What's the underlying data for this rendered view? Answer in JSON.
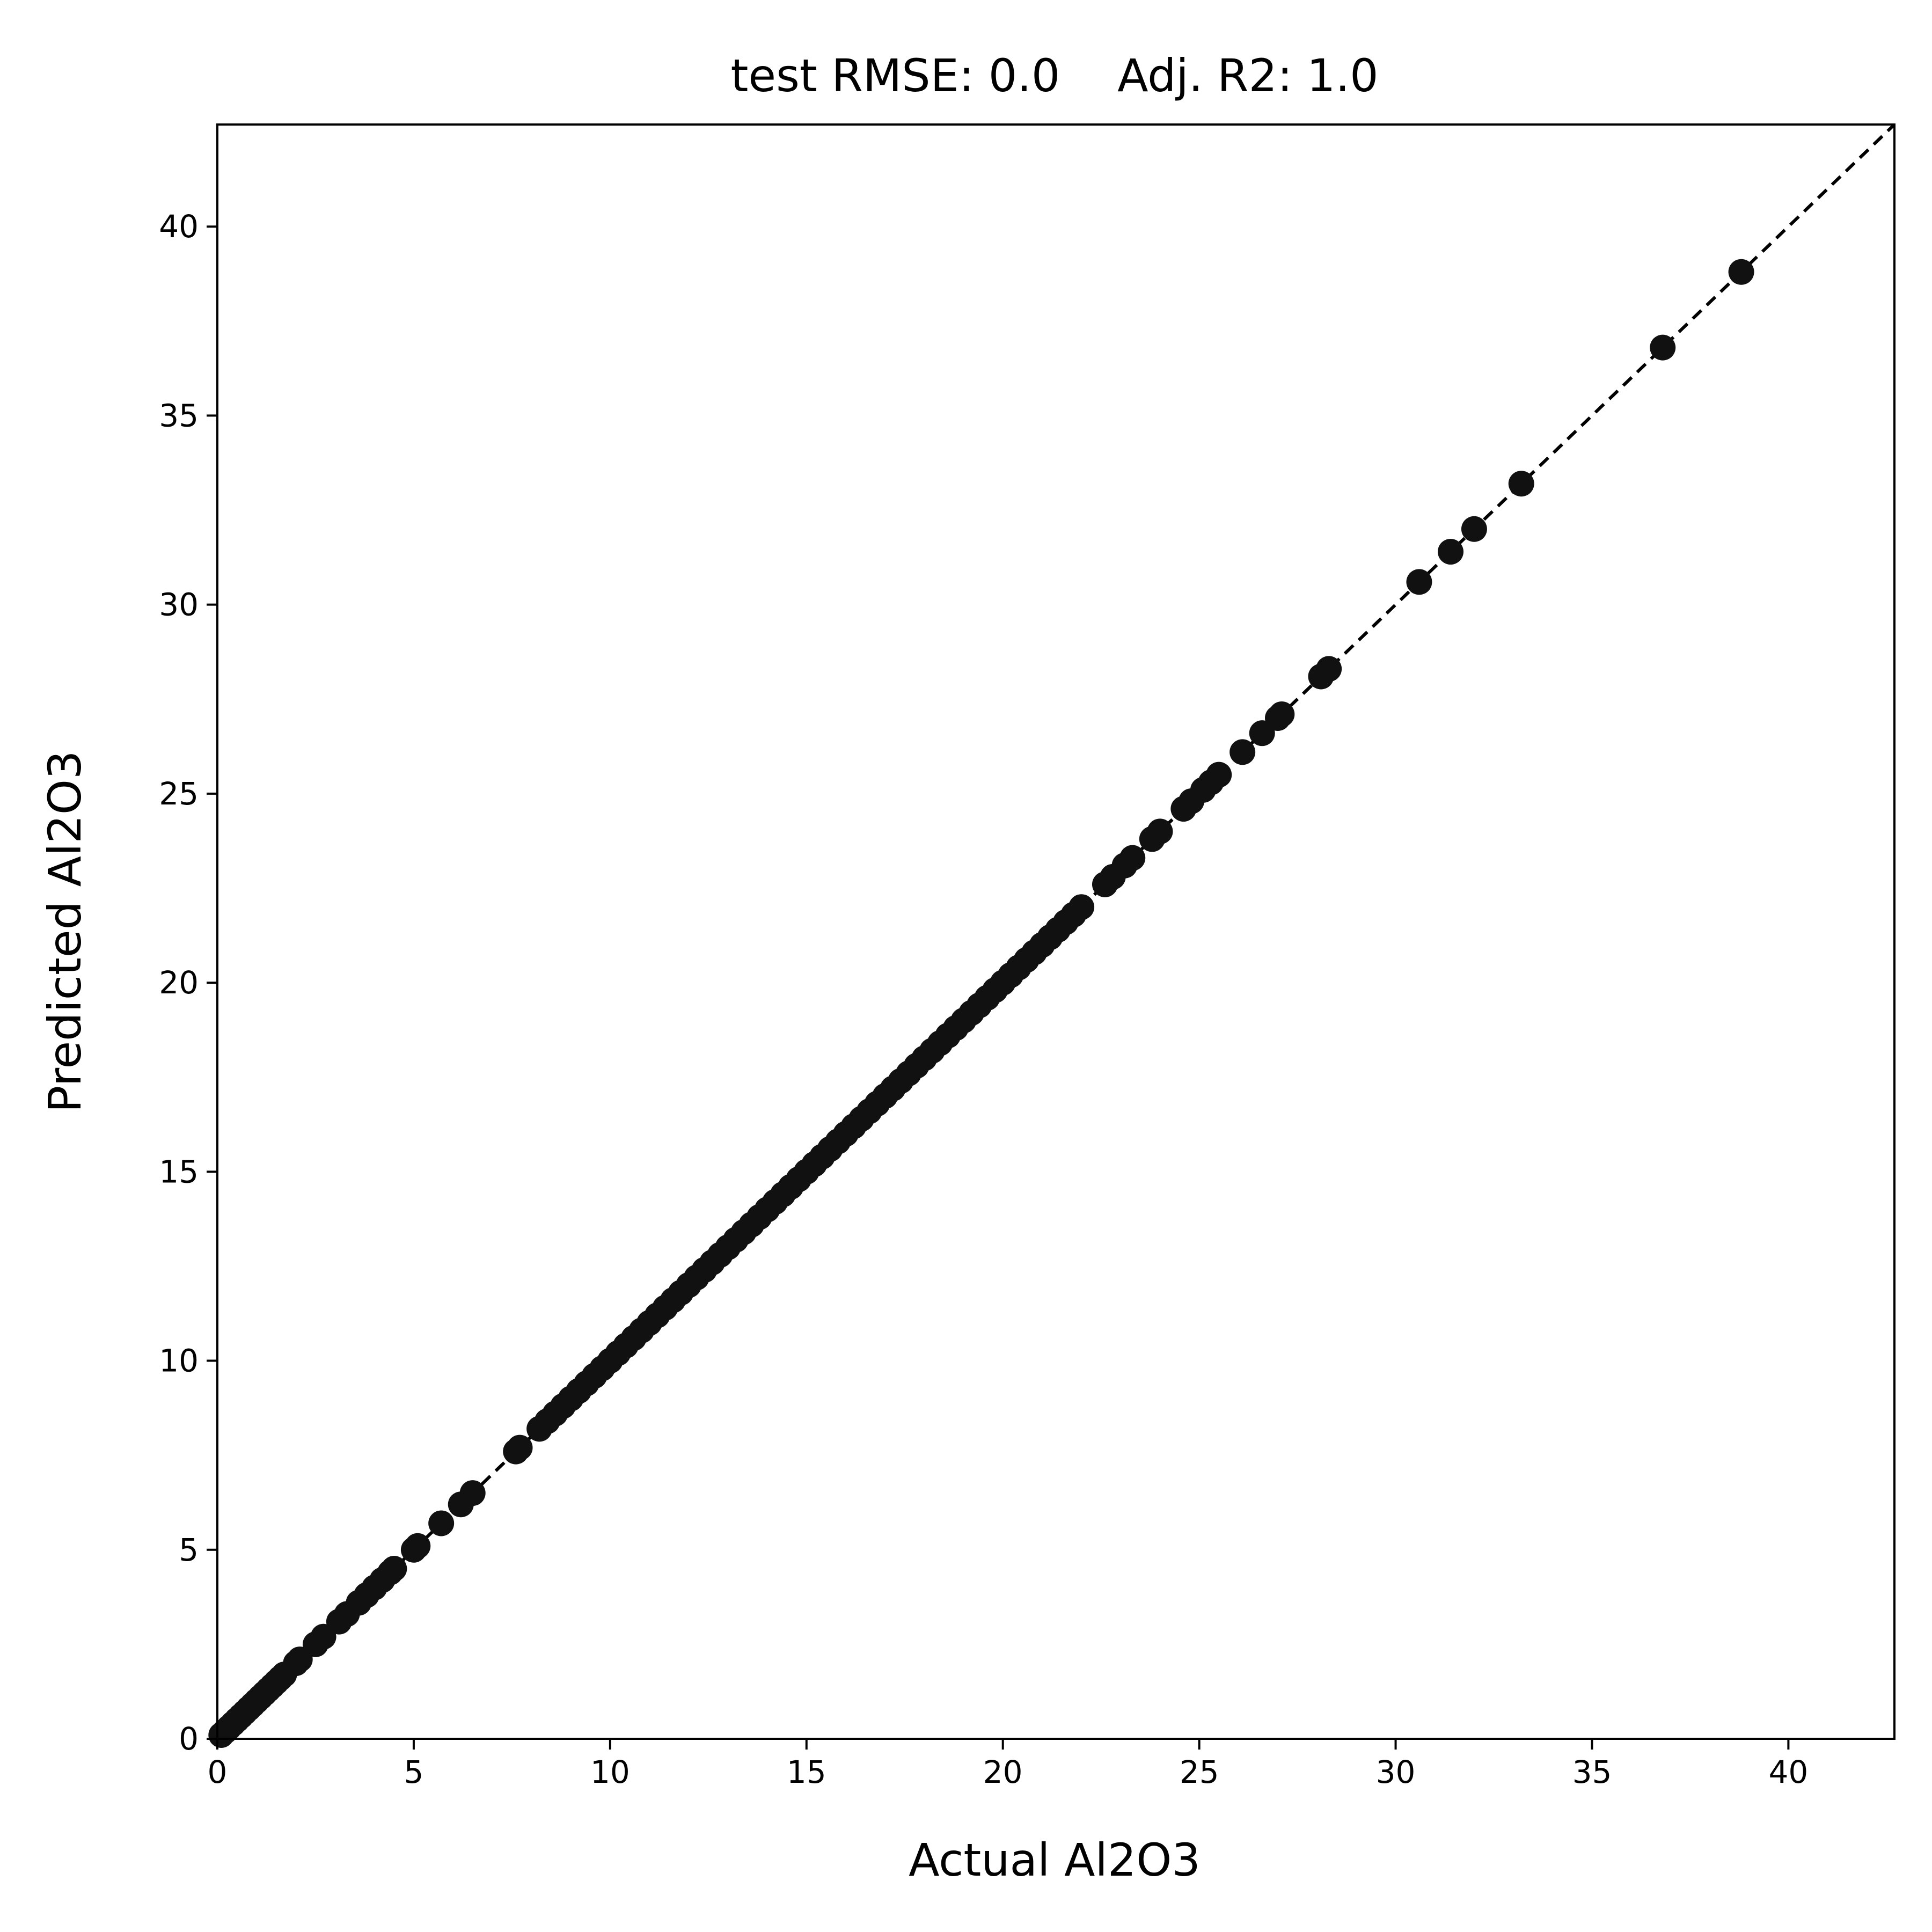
{
  "chart_data": {
    "type": "scatter",
    "title": "test RMSE: 0.0    Adj. R2: 1.0",
    "xlabel": "Actual Al2O3",
    "ylabel": "Predicted Al2O3",
    "xlim": [
      0,
      42.7
    ],
    "ylim": [
      0,
      42.7
    ],
    "xticks": [
      0,
      5,
      10,
      15,
      20,
      25,
      30,
      35,
      40
    ],
    "yticks": [
      0,
      5,
      10,
      15,
      20,
      25,
      30,
      35,
      40
    ],
    "grid": false,
    "reference_line": {
      "style": "dashed",
      "color": "#000000",
      "from": [
        0,
        0
      ],
      "to": [
        42.7,
        42.7
      ]
    },
    "marker_color": "#111111",
    "points": [
      [
        0.1,
        0.1
      ],
      [
        0.2,
        0.2
      ],
      [
        0.3,
        0.3
      ],
      [
        0.4,
        0.4
      ],
      [
        0.5,
        0.5
      ],
      [
        0.6,
        0.6
      ],
      [
        0.7,
        0.7
      ],
      [
        0.8,
        0.8
      ],
      [
        0.9,
        0.9
      ],
      [
        1.0,
        1.0
      ],
      [
        1.1,
        1.1
      ],
      [
        1.2,
        1.2
      ],
      [
        1.3,
        1.3
      ],
      [
        1.4,
        1.4
      ],
      [
        1.5,
        1.5
      ],
      [
        1.6,
        1.6
      ],
      [
        1.7,
        1.7
      ],
      [
        2.0,
        2.0
      ],
      [
        2.1,
        2.1
      ],
      [
        2.5,
        2.5
      ],
      [
        2.7,
        2.7
      ],
      [
        3.1,
        3.1
      ],
      [
        3.3,
        3.3
      ],
      [
        3.6,
        3.6
      ],
      [
        3.8,
        3.8
      ],
      [
        4.0,
        4.0
      ],
      [
        4.2,
        4.2
      ],
      [
        4.4,
        4.4
      ],
      [
        4.5,
        4.5
      ],
      [
        5.0,
        5.0
      ],
      [
        5.1,
        5.1
      ],
      [
        5.7,
        5.7
      ],
      [
        6.2,
        6.2
      ],
      [
        6.5,
        6.5
      ],
      [
        7.6,
        7.6
      ],
      [
        7.7,
        7.7
      ],
      [
        8.2,
        8.2
      ],
      [
        8.4,
        8.4
      ],
      [
        8.6,
        8.6
      ],
      [
        8.8,
        8.8
      ],
      [
        9.0,
        9.0
      ],
      [
        9.2,
        9.2
      ],
      [
        9.4,
        9.4
      ],
      [
        9.6,
        9.6
      ],
      [
        9.8,
        9.8
      ],
      [
        10.0,
        10.0
      ],
      [
        10.2,
        10.2
      ],
      [
        10.4,
        10.4
      ],
      [
        10.6,
        10.6
      ],
      [
        10.8,
        10.8
      ],
      [
        11.0,
        11.0
      ],
      [
        11.2,
        11.2
      ],
      [
        11.4,
        11.4
      ],
      [
        11.6,
        11.6
      ],
      [
        11.8,
        11.8
      ],
      [
        12.0,
        12.0
      ],
      [
        12.2,
        12.2
      ],
      [
        12.4,
        12.4
      ],
      [
        12.6,
        12.6
      ],
      [
        12.8,
        12.8
      ],
      [
        13.0,
        13.0
      ],
      [
        13.2,
        13.2
      ],
      [
        13.4,
        13.4
      ],
      [
        13.6,
        13.6
      ],
      [
        13.8,
        13.8
      ],
      [
        14.0,
        14.0
      ],
      [
        14.2,
        14.2
      ],
      [
        14.4,
        14.4
      ],
      [
        14.6,
        14.6
      ],
      [
        14.8,
        14.8
      ],
      [
        15.0,
        15.0
      ],
      [
        15.2,
        15.2
      ],
      [
        15.4,
        15.4
      ],
      [
        15.6,
        15.6
      ],
      [
        15.8,
        15.8
      ],
      [
        16.0,
        16.0
      ],
      [
        16.2,
        16.2
      ],
      [
        16.4,
        16.4
      ],
      [
        16.6,
        16.6
      ],
      [
        16.8,
        16.8
      ],
      [
        17.0,
        17.0
      ],
      [
        17.2,
        17.2
      ],
      [
        17.4,
        17.4
      ],
      [
        17.6,
        17.6
      ],
      [
        17.8,
        17.8
      ],
      [
        18.0,
        18.0
      ],
      [
        18.2,
        18.2
      ],
      [
        18.4,
        18.4
      ],
      [
        18.6,
        18.6
      ],
      [
        18.8,
        18.8
      ],
      [
        19.0,
        19.0
      ],
      [
        19.2,
        19.2
      ],
      [
        19.4,
        19.4
      ],
      [
        19.6,
        19.6
      ],
      [
        19.8,
        19.8
      ],
      [
        20.0,
        20.0
      ],
      [
        20.2,
        20.2
      ],
      [
        20.4,
        20.4
      ],
      [
        20.6,
        20.6
      ],
      [
        20.8,
        20.8
      ],
      [
        21.0,
        21.0
      ],
      [
        21.2,
        21.2
      ],
      [
        21.4,
        21.4
      ],
      [
        21.6,
        21.6
      ],
      [
        21.8,
        21.8
      ],
      [
        22.0,
        22.0
      ],
      [
        22.6,
        22.6
      ],
      [
        22.8,
        22.8
      ],
      [
        23.1,
        23.1
      ],
      [
        23.3,
        23.3
      ],
      [
        23.8,
        23.8
      ],
      [
        24.0,
        24.0
      ],
      [
        24.6,
        24.6
      ],
      [
        24.8,
        24.8
      ],
      [
        25.1,
        25.1
      ],
      [
        25.3,
        25.3
      ],
      [
        25.5,
        25.5
      ],
      [
        26.1,
        26.1
      ],
      [
        26.6,
        26.6
      ],
      [
        27.0,
        27.0
      ],
      [
        27.1,
        27.1
      ],
      [
        28.1,
        28.1
      ],
      [
        28.3,
        28.3
      ],
      [
        30.6,
        30.6
      ],
      [
        31.4,
        31.4
      ],
      [
        32.0,
        32.0
      ],
      [
        33.2,
        33.2
      ],
      [
        36.8,
        36.8
      ],
      [
        38.8,
        38.8
      ]
    ]
  }
}
